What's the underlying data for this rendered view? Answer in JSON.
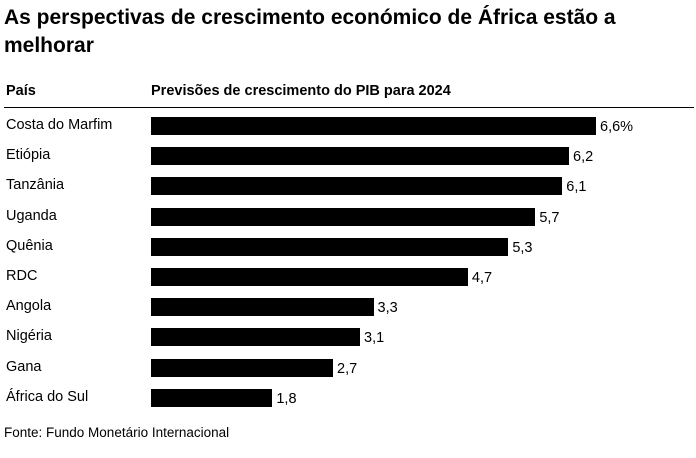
{
  "title": "As perspectivas de crescimento económico de África estão a melhorar",
  "header": {
    "country_col": "País",
    "metric_col": "Previsões de crescimento do PIB para 2024"
  },
  "source": "Fonte: Fundo Monetário Internacional",
  "chart_data": {
    "type": "bar",
    "orientation": "horizontal",
    "title": "As perspectivas de crescimento económico de África estão a melhorar",
    "categories": [
      "Costa do Marfim",
      "Etiópia",
      "Tanzânia",
      "Uganda",
      "Quênia",
      "RDC",
      "Angola",
      "Nigéria",
      "Gana",
      "África do Sul"
    ],
    "values": [
      6.6,
      6.2,
      6.1,
      5.7,
      5.3,
      4.7,
      3.3,
      3.1,
      2.7,
      1.8
    ],
    "value_labels": [
      "6,6%",
      "6,2",
      "6,1",
      "5,7",
      "5,3",
      "4,7",
      "3,3",
      "3,1",
      "2,7",
      "1,8"
    ],
    "xlim": [
      0,
      6.6
    ],
    "bar_color": "#000000",
    "grid": false,
    "legend": "none"
  }
}
